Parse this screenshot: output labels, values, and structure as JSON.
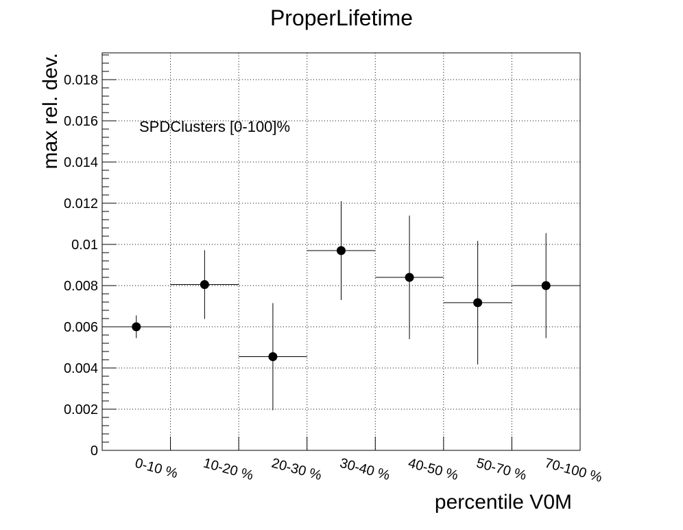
{
  "chart_data": {
    "type": "scatter",
    "title": "ProperLifetime",
    "xlabel": "percentile V0M",
    "ylabel": "max rel. dev.",
    "annotation": "SPDClusters [0-100]%",
    "categories": [
      "0-10 %",
      "10-20 %",
      "20-30 %",
      "30-40 %",
      "40-50 %",
      "50-70 %",
      "70-100 %"
    ],
    "values": [
      0.006,
      0.00805,
      0.00455,
      0.0097,
      0.0084,
      0.00717,
      0.008
    ],
    "errors": [
      0.00055,
      0.00167,
      0.0026,
      0.0024,
      0.003,
      0.003,
      0.00255
    ],
    "ylim": [
      0,
      0.0193
    ],
    "yticks": [
      0,
      0.002,
      0.004,
      0.006,
      0.008,
      0.01,
      0.012,
      0.014,
      0.016,
      0.018
    ],
    "ytick_labels": [
      "0",
      "0.002",
      "0.004",
      "0.006",
      "0.008",
      "0.01",
      "0.012",
      "0.014",
      "0.016",
      "0.018"
    ],
    "grid": true,
    "marker_color": "#000000"
  }
}
